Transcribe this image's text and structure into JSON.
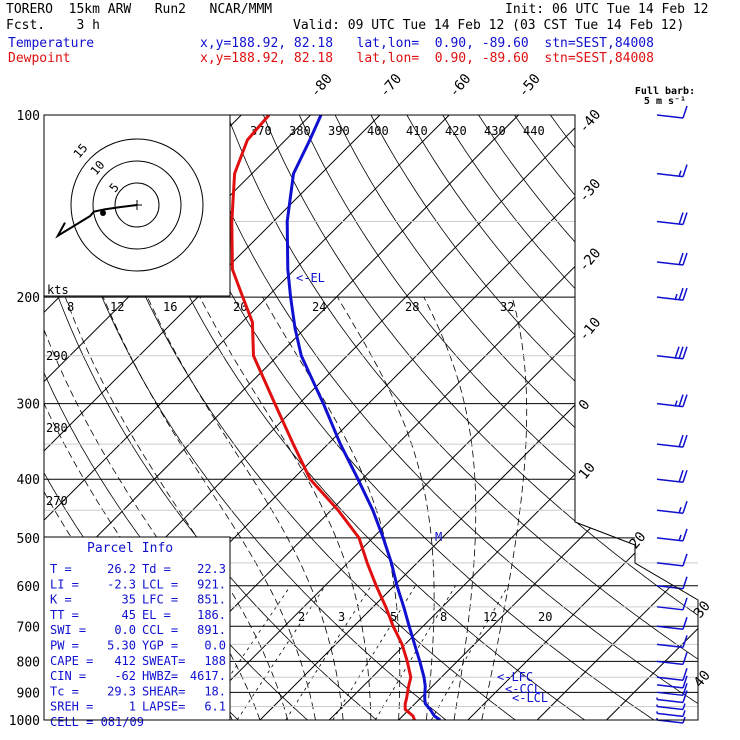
{
  "header": {
    "model": "TORERO  15km ARW   Run2   NCAR/MMM",
    "init": "Init: 06 UTC Tue 14 Feb 12",
    "fcst": "Fcst.    3 h",
    "valid": "Valid: 09 UTC Tue 14 Feb 12 (03 CST Tue 14 Feb 12)",
    "temp_label": "Temperature",
    "dew_label": "Dewpoint",
    "temp_loc": "x,y=188.92, 82.18   lat,lon=  0.90, -89.60  stn=SEST,84008",
    "dew_loc": "x,y=188.92, 82.18   lat,lon=  0.90, -89.60  stn=SEST,84008"
  },
  "barb_legend": {
    "line1": "Full barb:",
    "line2": "5 m s⁻¹"
  },
  "hodo": {
    "unit": "kts",
    "ring_labels": [
      "5",
      "10",
      "15"
    ]
  },
  "markers": {
    "el": "<-EL",
    "lfc": "<-LFC",
    "ccl": "<-CCL",
    "lcl": "<-LCL",
    "m": "M"
  },
  "parcel": {
    "title": "Parcel Info",
    "rows": [
      [
        "T   =",
        "26.2",
        "Td  =",
        "22.3"
      ],
      [
        "LI  =",
        "-2.3",
        "LCL =",
        "921."
      ],
      [
        "K   =",
        "35",
        "LFC =",
        "851."
      ],
      [
        "TT  =",
        "45",
        "EL  =",
        "186."
      ],
      [
        "SWI =",
        "0.0",
        "CCL =",
        "891."
      ],
      [
        "PW  =",
        "5.30",
        "YGP =",
        "0.0"
      ],
      [
        "CAPE =",
        "412",
        "SWEAT=",
        "188"
      ],
      [
        "CIN =",
        "-62",
        "HWBZ=",
        "4617."
      ],
      [
        "Tc  =",
        "29.3",
        "SHEAR=",
        "18."
      ],
      [
        "SREH =",
        "1",
        "LAPSE=",
        "6.1"
      ],
      [
        "CELL = 081/09",
        "",
        "",
        ""
      ]
    ]
  },
  "colors": {
    "temperature": "#1010d0",
    "dewpoint": "#e01010",
    "isotherm": "#000000",
    "grid": "#000000"
  },
  "chart_data": {
    "type": "line",
    "title": "",
    "y_axis": "pressure (hPa), log scale",
    "pressure_labels": [
      100,
      200,
      300,
      400,
      500,
      600,
      700,
      800,
      900,
      1000
    ],
    "plim": [
      1000,
      100
    ],
    "isotherm_labels": [
      -80,
      -70,
      -60,
      -50,
      -40,
      -30,
      -20,
      -10,
      0,
      10,
      20,
      30,
      40
    ],
    "theta_top_labels": [
      "370",
      "380",
      "390",
      "400",
      "410",
      "420",
      "430",
      "440"
    ],
    "mixing_labels_top": [
      "8",
      "12",
      "16",
      "20",
      "24",
      "28",
      "32"
    ],
    "theta_side_labels": [
      "290",
      "280",
      "270"
    ],
    "mixing_labels_bottom": [
      "2",
      "3",
      "5",
      "8",
      "12",
      "20"
    ],
    "series": [
      {
        "name": "Temperature",
        "color": "#1010d0",
        "p": [
          1000,
          985,
          960,
          940,
          920,
          900,
          880,
          850,
          800,
          750,
          700,
          650,
          600,
          550,
          500,
          450,
          400,
          350,
          300,
          250,
          225,
          200,
          180,
          150,
          125,
          110,
          100
        ],
        "t": [
          26.0,
          24.6,
          23.0,
          21.5,
          20.6,
          19.8,
          19.0,
          17.5,
          14.6,
          11.4,
          8.0,
          4.4,
          0.4,
          -3.7,
          -8.5,
          -14.0,
          -20.6,
          -28.2,
          -36.5,
          -46.6,
          -51.5,
          -56.6,
          -61.0,
          -68.0,
          -74.0,
          -76.5,
          -78.5
        ]
      },
      {
        "name": "Dewpoint",
        "color": "#e01010",
        "p": [
          1000,
          985,
          960,
          940,
          920,
          900,
          880,
          850,
          800,
          750,
          700,
          650,
          600,
          550,
          500,
          450,
          400,
          350,
          300,
          250,
          220,
          200,
          180,
          150,
          125,
          110,
          100
        ],
        "t": [
          22.3,
          21.5,
          19.4,
          18.6,
          18.0,
          17.3,
          16.6,
          15.6,
          12.8,
          9.6,
          5.7,
          1.8,
          -2.6,
          -7.2,
          -12.0,
          -19.0,
          -27.5,
          -35.0,
          -43.5,
          -53.5,
          -58.5,
          -63.5,
          -69.0,
          -76.0,
          -82.5,
          -85.5,
          -86.0
        ]
      }
    ],
    "wind_barbs": [
      {
        "p": 1000,
        "speed_ms": 2
      },
      {
        "p": 975,
        "speed_ms": 3
      },
      {
        "p": 950,
        "speed_ms": 3
      },
      {
        "p": 925,
        "speed_ms": 4
      },
      {
        "p": 900,
        "speed_ms": 5
      },
      {
        "p": 875,
        "speed_ms": 5
      },
      {
        "p": 850,
        "speed_ms": 6
      },
      {
        "p": 800,
        "speed_ms": 6
      },
      {
        "p": 750,
        "speed_ms": 6
      },
      {
        "p": 700,
        "speed_ms": 5
      },
      {
        "p": 650,
        "speed_ms": 5
      },
      {
        "p": 600,
        "speed_ms": 5
      },
      {
        "p": 550,
        "speed_ms": 6
      },
      {
        "p": 500,
        "speed_ms": 7
      },
      {
        "p": 450,
        "speed_ms": 8
      },
      {
        "p": 400,
        "speed_ms": 9
      },
      {
        "p": 350,
        "speed_ms": 10
      },
      {
        "p": 300,
        "speed_ms": 12
      },
      {
        "p": 250,
        "speed_ms": 14
      },
      {
        "p": 200,
        "speed_ms": 13
      },
      {
        "p": 175,
        "speed_ms": 11
      },
      {
        "p": 150,
        "speed_ms": 9
      },
      {
        "p": 125,
        "speed_ms": 8
      },
      {
        "p": 100,
        "speed_ms": 6
      }
    ],
    "hodograph": {
      "u": [
        0,
        -5,
        -9,
        -12,
        -13,
        -15,
        -18,
        -20,
        -22,
        -20
      ],
      "v": [
        0,
        -1,
        -2,
        -3,
        -5,
        -7,
        -10,
        -12,
        -14,
        -8
      ]
    }
  }
}
